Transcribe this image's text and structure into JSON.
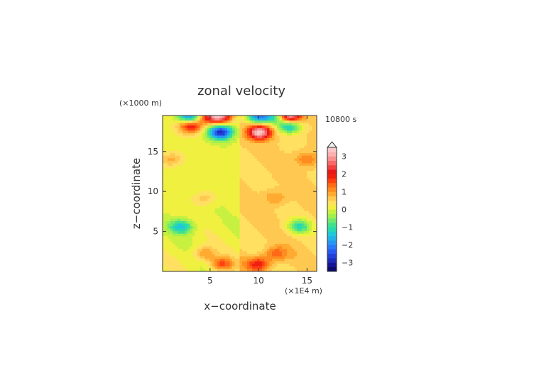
{
  "chart_data": {
    "type": "heatmap",
    "title": "zonal velocity",
    "xlabel": "x−coordinate",
    "ylabel": "z−coordinate",
    "x_unit": "(×1E4 m)",
    "y_unit": "(×1000 m)",
    "time_label": "10800 s",
    "xlim": [
      0.1,
      16
    ],
    "ylim": [
      0,
      19.5
    ],
    "x_ticks": [
      5,
      10,
      15
    ],
    "y_ticks": [
      5,
      10,
      15
    ],
    "colorbar": {
      "levels": [
        -3.5,
        -3.25,
        -3,
        -2.75,
        -2.5,
        -2.25,
        -2,
        -1.75,
        -1.5,
        -1.25,
        -1,
        -0.75,
        -0.5,
        -0.25,
        0,
        0.25,
        0.5,
        0.75,
        1,
        1.25,
        1.5,
        1.75,
        2,
        2.25,
        2.5,
        2.75,
        3,
        3.25,
        3.5
      ],
      "colors": [
        "#0a0a6e",
        "#141493",
        "#1c2bb8",
        "#2040d8",
        "#2858f0",
        "#2a78f8",
        "#2896f0",
        "#22b0e8",
        "#20c8d8",
        "#28d8b0",
        "#40e090",
        "#70e870",
        "#a0f050",
        "#c8f040",
        "#f0f040",
        "#ffe060",
        "#ffc850",
        "#ffaa30",
        "#ff8c20",
        "#ff6a18",
        "#ff4010",
        "#f02010",
        "#e81818",
        "#f04040",
        "#f86868",
        "#f89090",
        "#f8b0b0",
        "#f8c8c8"
      ],
      "tick_labels": [
        "3",
        "2",
        "1",
        "0",
        "−1",
        "−2",
        "−3"
      ],
      "tick_values": [
        3,
        2,
        1,
        0,
        -1,
        -2,
        -3
      ]
    },
    "field_features": [
      {
        "x": 6.1,
        "z": 17.4,
        "value": -3.0
      },
      {
        "x": 10.1,
        "z": 17.4,
        "value": 3.0
      },
      {
        "x": 3.0,
        "z": 18.2,
        "value": 2.0
      },
      {
        "x": 13.2,
        "z": 18.2,
        "value": -2.0
      },
      {
        "x": 4.4,
        "z": 19.3,
        "value": 1.5
      },
      {
        "x": 11.8,
        "z": 19.3,
        "value": -1.5
      },
      {
        "x": 3.0,
        "z": 19.4,
        "value": -2.5
      },
      {
        "x": 6.0,
        "z": 19.4,
        "value": 3.0
      },
      {
        "x": 10.0,
        "z": 19.4,
        "value": -2.5
      },
      {
        "x": 13.2,
        "z": 19.4,
        "value": 3.0
      },
      {
        "x": 2.0,
        "z": 5.6,
        "value": -1.5
      },
      {
        "x": 14.2,
        "z": 5.6,
        "value": -1.5
      },
      {
        "x": 6.2,
        "z": 0.9,
        "value": 1.5
      },
      {
        "x": 10.0,
        "z": 0.9,
        "value": 1.5
      },
      {
        "x": 4.4,
        "z": 2.2,
        "value": 1.0
      },
      {
        "x": 11.8,
        "z": 2.2,
        "value": 1.0
      },
      {
        "x": 1.0,
        "z": 14.0,
        "value": 0.8
      },
      {
        "x": 15.0,
        "z": 14.0,
        "value": 0.8
      },
      {
        "x": 4.5,
        "z": 9.2,
        "value": 0.6
      },
      {
        "x": 11.7,
        "z": 9.2,
        "value": 0.6
      }
    ]
  }
}
